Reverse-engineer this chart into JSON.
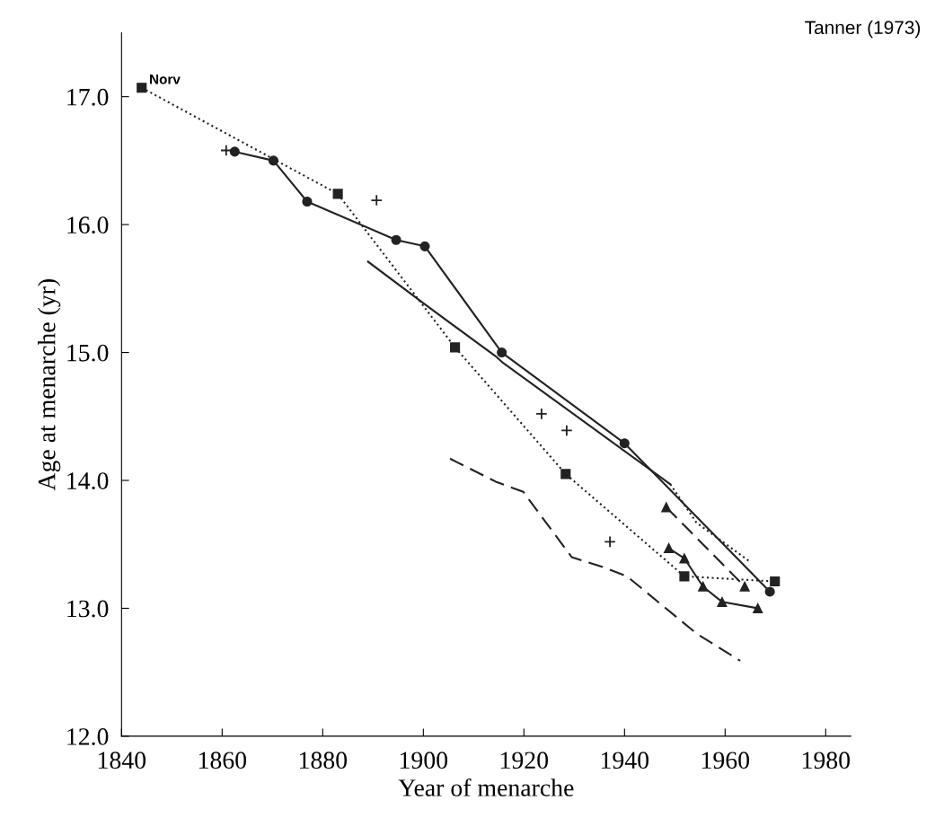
{
  "chart_data": {
    "type": "line",
    "xlabel": "Year of menarche",
    "ylabel": "Age at menarche (yr)",
    "xlim": [
      1840,
      1985
    ],
    "ylim": [
      12,
      17.5
    ],
    "xticks": [
      1840,
      1860,
      1880,
      1900,
      1920,
      1940,
      1960,
      1980
    ],
    "yticks": [
      {
        "value": 12,
        "label": "12.0"
      },
      {
        "value": 13,
        "label": "13.0"
      },
      {
        "value": 14,
        "label": "14.0"
      },
      {
        "value": 15,
        "label": "15.0"
      },
      {
        "value": 16,
        "label": "16.0"
      },
      {
        "value": 17,
        "label": "17.0"
      }
    ],
    "grid": false,
    "legend": false,
    "annotations": [
      {
        "text": "Norv",
        "x": 1844,
        "y": 17.07
      },
      "Tanner (1973)"
    ],
    "series": [
      {
        "color": "#222222",
        "marker": "square",
        "line_style": "dotted",
        "x": [
          1844,
          1883,
          1906.3,
          1928.3,
          1951.9,
          1969.9
        ],
        "values": [
          17.07,
          16.24,
          15.04,
          14.05,
          13.25,
          13.21
        ]
      },
      {
        "color": "#222222",
        "marker": "circle",
        "line_style": "solid",
        "x": [
          1862.5,
          1870.2,
          1876.9,
          1894.6,
          1900.3,
          1915.6,
          1940,
          1968.9
        ],
        "values": [
          16.57,
          16.5,
          16.18,
          15.88,
          15.83,
          15.0,
          14.29,
          13.13
        ]
      },
      {
        "color": "#222222",
        "marker": "none",
        "line_style": "solid",
        "x": [
          1889,
          1901.2,
          1914.4,
          1915.8,
          1949.1
        ],
        "values": [
          15.71,
          15.35,
          14.97,
          14.92,
          13.97
        ]
      },
      {
        "color": "#222222",
        "marker": "none",
        "line_style": "dotted",
        "x": [
          1949.1,
          1954.3,
          1965.1
        ],
        "values": [
          13.97,
          13.67,
          13.36
        ]
      },
      {
        "color": "#222222",
        "marker": "triangle",
        "line_style": "dashed",
        "x": [
          1948.3,
          1963.9
        ],
        "values": [
          13.79,
          13.17
        ]
      },
      {
        "color": "#222222",
        "marker": "triangle",
        "line_style": "solid",
        "x": [
          1948.8,
          1951.9,
          1955.6,
          1959.4,
          1966.5
        ],
        "values": [
          13.47,
          13.39,
          13.17,
          13.05,
          13.0
        ]
      },
      {
        "color": "#222222",
        "marker": "none",
        "line_style": "dashed",
        "x": [
          1905.3,
          1914.4,
          1919.9,
          1921,
          1929.5,
          1935.9,
          1940.5,
          1954.4,
          1963
        ],
        "values": [
          14.17,
          13.99,
          13.91,
          13.85,
          13.4,
          13.32,
          13.25,
          12.8,
          12.59
        ]
      },
      {
        "type": "scatter",
        "color": "#222222",
        "marker": "cross",
        "x": [
          1860.8,
          1890.7,
          1923.5,
          1928.5,
          1937.1
        ],
        "values": [
          16.58,
          16.19,
          14.52,
          14.39,
          13.52
        ]
      }
    ]
  }
}
